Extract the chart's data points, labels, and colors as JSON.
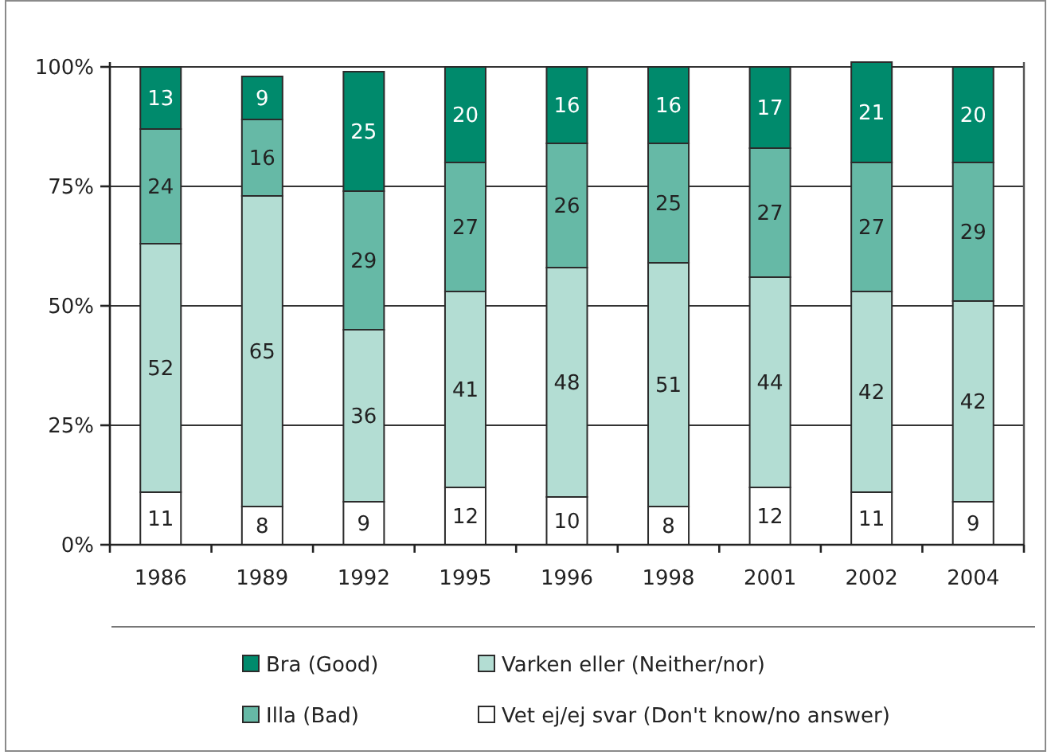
{
  "chart_data": {
    "type": "bar",
    "stacked": true,
    "categories": [
      "1986",
      "1989",
      "1992",
      "1995",
      "1996",
      "1998",
      "2001",
      "2002",
      "2004"
    ],
    "series": [
      {
        "name": "Vet ej/ej svar (Don't know/no answer)",
        "color": "#ffffff",
        "values": [
          11,
          8,
          9,
          12,
          10,
          8,
          12,
          11,
          9
        ]
      },
      {
        "name": "Varken eller (Neither/nor)",
        "color": "#b3ddd3",
        "values": [
          52,
          65,
          36,
          41,
          48,
          51,
          44,
          42,
          42
        ]
      },
      {
        "name": "Illa (Bad)",
        "color": "#66b9a6",
        "values": [
          24,
          16,
          29,
          27,
          26,
          25,
          27,
          27,
          29
        ]
      },
      {
        "name": "Bra (Good)",
        "color": "#008a6c",
        "values": [
          13,
          9,
          25,
          20,
          16,
          16,
          17,
          21,
          20
        ]
      }
    ],
    "ylim": [
      0,
      101
    ],
    "yticks": [
      {
        "value": 0,
        "label": "0%"
      },
      {
        "value": 25,
        "label": "25%"
      },
      {
        "value": 50,
        "label": "50%"
      },
      {
        "value": 75,
        "label": "75%"
      },
      {
        "value": 100,
        "label": "100%"
      }
    ],
    "grid": "y",
    "legend": "bottom",
    "data_labels": true
  }
}
